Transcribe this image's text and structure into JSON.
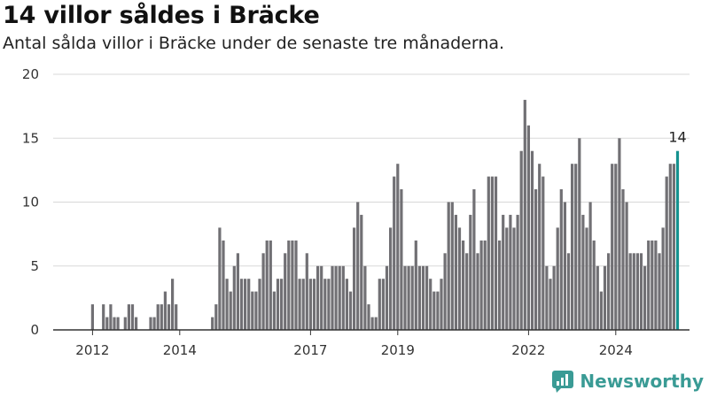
{
  "header": {
    "title": "14 villor såldes i Bräcke",
    "subtitle": "Antal sålda villor i Bräcke under de senaste tre månaderna."
  },
  "brand": {
    "name": "Newsworthy",
    "color": "#3a9b95"
  },
  "colors": {
    "bar": "#717074",
    "highlight": "#15928f",
    "grid": "#d8d8d8",
    "axis": "#333333"
  },
  "chart_data": {
    "type": "bar",
    "title": "14 villor såldes i Bräcke",
    "subtitle": "Antal sålda villor i Bräcke under de senaste tre månaderna.",
    "xlabel": "",
    "ylabel": "",
    "ylim": [
      0,
      20
    ],
    "yticks": [
      0,
      5,
      10,
      15,
      20
    ],
    "xticks": [
      "2012",
      "2014",
      "2017",
      "2019",
      "2022",
      "2024"
    ],
    "grid": true,
    "start": "2011-09",
    "end": "2025-01",
    "values": [
      null,
      null,
      null,
      null,
      2,
      null,
      null,
      2,
      1,
      2,
      1,
      1,
      null,
      1,
      2,
      2,
      1,
      null,
      null,
      null,
      1,
      1,
      2,
      2,
      3,
      2,
      4,
      2,
      null,
      null,
      null,
      null,
      null,
      null,
      null,
      null,
      null,
      1,
      2,
      8,
      7,
      4,
      3,
      5,
      6,
      4,
      4,
      4,
      3,
      3,
      4,
      6,
      7,
      7,
      3,
      4,
      4,
      6,
      7,
      7,
      7,
      4,
      4,
      6,
      4,
      4,
      5,
      5,
      4,
      4,
      5,
      5,
      5,
      5,
      4,
      3,
      8,
      10,
      9,
      5,
      2,
      1,
      1,
      4,
      4,
      5,
      8,
      12,
      13,
      11,
      5,
      5,
      5,
      7,
      5,
      5,
      5,
      4,
      3,
      3,
      4,
      6,
      10,
      10,
      9,
      8,
      7,
      6,
      9,
      11,
      6,
      7,
      7,
      12,
      12,
      12,
      7,
      9,
      8,
      9,
      8,
      9,
      14,
      18,
      16,
      14,
      11,
      13,
      12,
      5,
      4,
      5,
      8,
      11,
      10,
      6,
      13,
      13,
      15,
      9,
      8,
      10,
      7,
      5,
      3,
      5,
      6,
      13,
      13,
      15,
      11,
      10,
      6,
      6,
      6,
      6,
      5,
      7,
      7,
      7,
      6,
      8,
      12,
      13,
      13,
      14
    ],
    "highlight_last": true,
    "last_label": "14"
  }
}
